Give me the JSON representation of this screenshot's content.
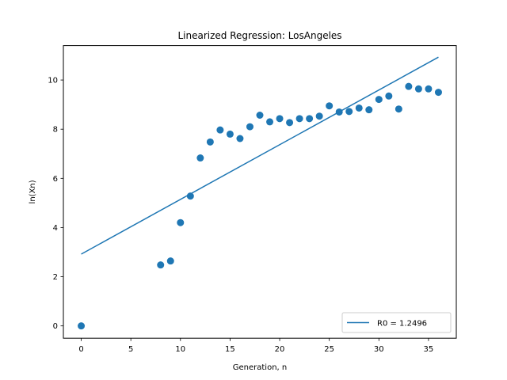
{
  "chart_data": {
    "type": "scatter",
    "title": "Linearized Regression: LosAngeles",
    "xlabel": "Generation, n",
    "ylabel": "ln(Xn)",
    "xlim": [
      -1.8,
      37.8
    ],
    "ylim": [
      -0.5,
      11.4
    ],
    "xticks": [
      0,
      5,
      10,
      15,
      20,
      25,
      30,
      35
    ],
    "yticks": [
      0,
      2,
      4,
      6,
      8,
      10
    ],
    "grid": false,
    "legend_position": "lower-right",
    "point_color": "#1f77b4",
    "line_color": "#1f77b4",
    "series": [
      {
        "type": "scatter",
        "x": [
          0,
          8,
          9,
          10,
          11,
          12,
          13,
          14,
          15,
          16,
          17,
          18,
          19,
          20,
          21,
          22,
          23,
          24,
          25,
          26,
          27,
          28,
          29,
          30,
          31,
          32,
          33,
          34,
          35,
          36
        ],
        "y": [
          0.0,
          2.48,
          2.64,
          4.2,
          5.28,
          6.83,
          7.48,
          7.97,
          7.8,
          7.62,
          8.1,
          8.57,
          8.3,
          8.43,
          8.27,
          8.43,
          8.43,
          8.53,
          8.95,
          8.7,
          8.72,
          8.86,
          8.79,
          9.21,
          9.35,
          8.82,
          9.74,
          9.64,
          9.64,
          9.5
        ]
      },
      {
        "type": "line",
        "name": "R0 = 1.2496",
        "x": [
          0,
          36
        ],
        "y": [
          2.92,
          10.93
        ]
      }
    ]
  }
}
